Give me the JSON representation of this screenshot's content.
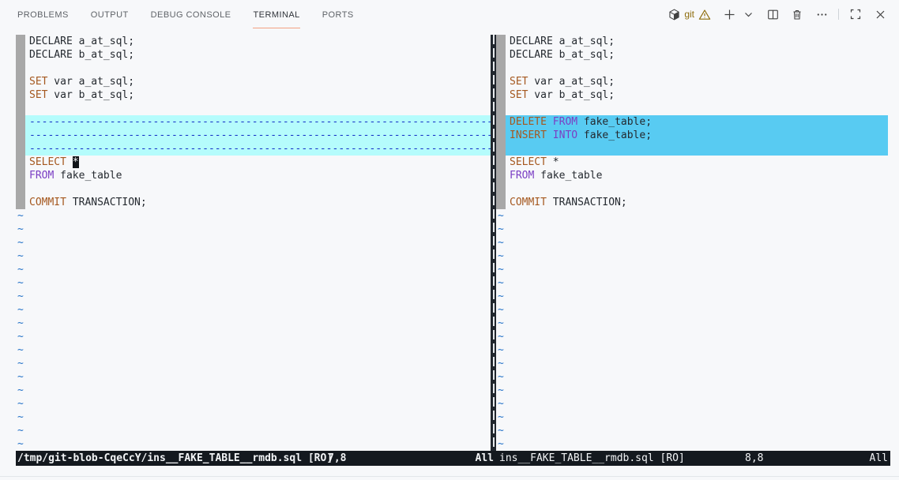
{
  "panel_tabs": {
    "items": [
      {
        "label": "PROBLEMS",
        "active": false
      },
      {
        "label": "OUTPUT",
        "active": false
      },
      {
        "label": "DEBUG CONSOLE",
        "active": false
      },
      {
        "label": "TERMINAL",
        "active": true
      },
      {
        "label": "PORTS",
        "active": false
      }
    ]
  },
  "toolbar": {
    "terminal_name": "git",
    "has_warning": true,
    "icons": [
      "cube-icon",
      "warning-icon",
      "new-terminal-icon",
      "chevron-down-icon",
      "split-terminal-icon",
      "trash-icon",
      "more-actions-icon",
      "maximize-panel-icon",
      "close-panel-icon"
    ]
  },
  "diff": {
    "tilde_char": "~",
    "tilde_rows": 18,
    "filler_text": "--------------------------------------------------------------------------------",
    "left": {
      "lines": [
        {
          "type": "code",
          "segments": [
            {
              "text": "DECLARE a_at_sql;",
              "color": "normal"
            }
          ]
        },
        {
          "type": "code",
          "segments": [
            {
              "text": "DECLARE b_at_sql;",
              "color": "normal"
            }
          ]
        },
        {
          "type": "blank"
        },
        {
          "type": "code",
          "segments": [
            {
              "text": "SET",
              "color": "keyword"
            },
            {
              "text": " var a_at_sql;",
              "color": "normal"
            }
          ]
        },
        {
          "type": "code",
          "segments": [
            {
              "text": "SET",
              "color": "keyword"
            },
            {
              "text": " var b_at_sql;",
              "color": "normal"
            }
          ]
        },
        {
          "type": "blank"
        },
        {
          "type": "filler"
        },
        {
          "type": "filler"
        },
        {
          "type": "filler"
        },
        {
          "type": "code",
          "segments": [
            {
              "text": "SELECT",
              "color": "keyword"
            },
            {
              "text": " ",
              "color": "normal"
            },
            {
              "text": "*",
              "color": "cursor"
            }
          ]
        },
        {
          "type": "code",
          "segments": [
            {
              "text": "FROM",
              "color": "keyword2"
            },
            {
              "text": " fake_table",
              "color": "normal"
            }
          ]
        },
        {
          "type": "blank"
        },
        {
          "type": "code",
          "segments": [
            {
              "text": "COMMIT",
              "color": "keyword"
            },
            {
              "text": " TRANSACTION;",
              "color": "normal"
            }
          ]
        }
      ]
    },
    "right": {
      "lines": [
        {
          "type": "code",
          "segments": [
            {
              "text": "DECLARE a_at_sql;",
              "color": "normal"
            }
          ]
        },
        {
          "type": "code",
          "segments": [
            {
              "text": "DECLARE b_at_sql;",
              "color": "normal"
            }
          ]
        },
        {
          "type": "blank"
        },
        {
          "type": "code",
          "segments": [
            {
              "text": "SET",
              "color": "keyword"
            },
            {
              "text": " var a_at_sql;",
              "color": "normal"
            }
          ]
        },
        {
          "type": "code",
          "segments": [
            {
              "text": "SET",
              "color": "keyword"
            },
            {
              "text": " var b_at_sql;",
              "color": "normal"
            }
          ]
        },
        {
          "type": "blank"
        },
        {
          "type": "added",
          "segments": [
            {
              "text": "DELETE",
              "color": "keyword"
            },
            {
              "text": " ",
              "color": "normal"
            },
            {
              "text": "FROM",
              "color": "keyword2"
            },
            {
              "text": " fake_table;",
              "color": "normal"
            }
          ]
        },
        {
          "type": "added",
          "segments": [
            {
              "text": "INSERT",
              "color": "keyword"
            },
            {
              "text": " ",
              "color": "normal"
            },
            {
              "text": "INTO",
              "color": "keyword2"
            },
            {
              "text": " fake_table;",
              "color": "normal"
            }
          ]
        },
        {
          "type": "added_blank"
        },
        {
          "type": "code",
          "segments": [
            {
              "text": "SELECT",
              "color": "keyword"
            },
            {
              "text": " *",
              "color": "normal"
            }
          ]
        },
        {
          "type": "code",
          "segments": [
            {
              "text": "FROM",
              "color": "keyword2"
            },
            {
              "text": " fake_table",
              "color": "normal"
            }
          ]
        },
        {
          "type": "blank"
        },
        {
          "type": "code",
          "segments": [
            {
              "text": "COMMIT",
              "color": "keyword"
            },
            {
              "text": " TRANSACTION;",
              "color": "normal"
            }
          ]
        }
      ]
    }
  },
  "statusbar": {
    "left": {
      "file": "/tmp/git-blob-CqeCcY/ins__FAKE_TABLE__rmdb.sql [RO]",
      "position": "7,8",
      "scroll": "All"
    },
    "right": {
      "file": "ins__FAKE_TABLE__rmdb.sql [RO]",
      "position": "8,8",
      "scroll": "All"
    }
  },
  "colors": {
    "bg": "#f7f8fa",
    "keyword": "#a5581f",
    "keyword2": "#7b3fc4",
    "normal": "#24292f",
    "nontext": "#2472c8",
    "filler_dash": "#1634c8",
    "diff_delete_bg": "#b5fcfc",
    "diff_add_bg": "#58cbf2",
    "fold_column": "#a8a8a8",
    "divider_bg": "#21272e",
    "divider_dash": "#e6e9ec",
    "statusbar_bg": "#14191f",
    "statusbar_fg": "#f2f4f6",
    "tab_fg": "#5f6368",
    "tab_active_fg": "#30343a",
    "tab_underline": "#f2a182",
    "icon": "#424242",
    "git_status": "#8e6d0d",
    "cursor_bg": "#101418",
    "cursor_fg": "#f5f7f9",
    "border_line": "#e3e6ea"
  }
}
